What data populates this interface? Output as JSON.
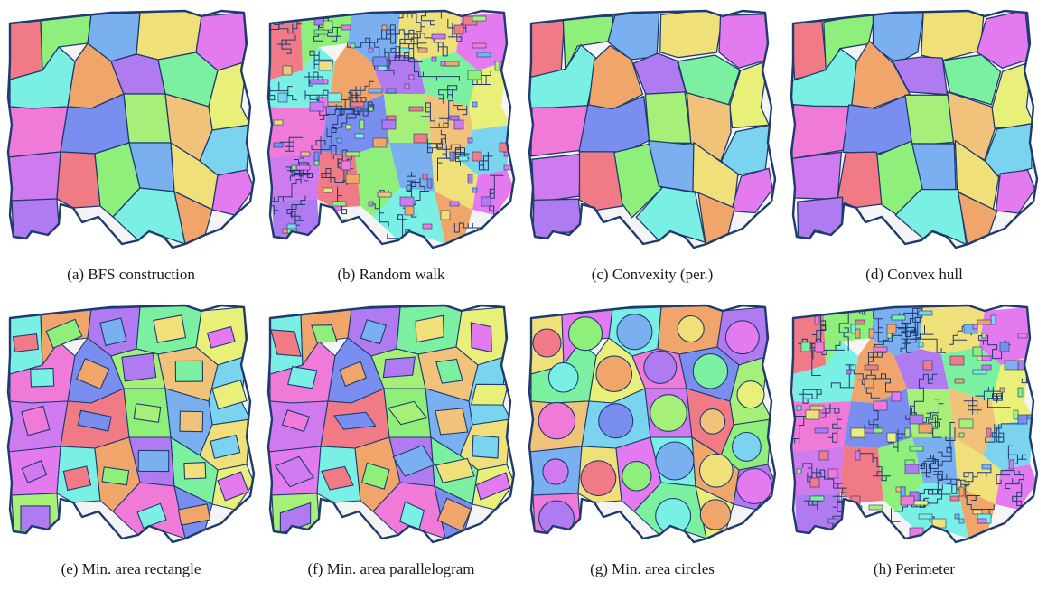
{
  "panels": [
    {
      "id": "a",
      "caption": "(a)  BFS construction",
      "style": "regions-straight"
    },
    {
      "id": "b",
      "caption": "(b)  Random walk",
      "style": "regions-fractal"
    },
    {
      "id": "c",
      "caption": "(c)  Convexity (per.)",
      "style": "regions-convex"
    },
    {
      "id": "d",
      "caption": "(d)  Convex hull",
      "style": "regions-convex"
    },
    {
      "id": "e",
      "caption": "(e)  Min. area rectangle",
      "style": "regions-rectangles"
    },
    {
      "id": "f",
      "caption": "(f)  Min. area parallelogram",
      "style": "regions-parallelograms"
    },
    {
      "id": "g",
      "caption": "(g)  Min. area circles",
      "style": "regions-circles"
    },
    {
      "id": "h",
      "caption": "(h)  Perimeter",
      "style": "regions-fractal"
    }
  ],
  "colors": {
    "outline": "#1f3b6e",
    "palette": [
      "#f07a86",
      "#8ef07a",
      "#7ab0f0",
      "#f0e07a",
      "#e47af0",
      "#7af0e4",
      "#f0a66a",
      "#b07af0",
      "#7af0a0",
      "#e8f07a",
      "#f07ad8",
      "#7a8ef0",
      "#a6f07a",
      "#f0c27a",
      "#7ad4f0",
      "#d07af0"
    ]
  }
}
